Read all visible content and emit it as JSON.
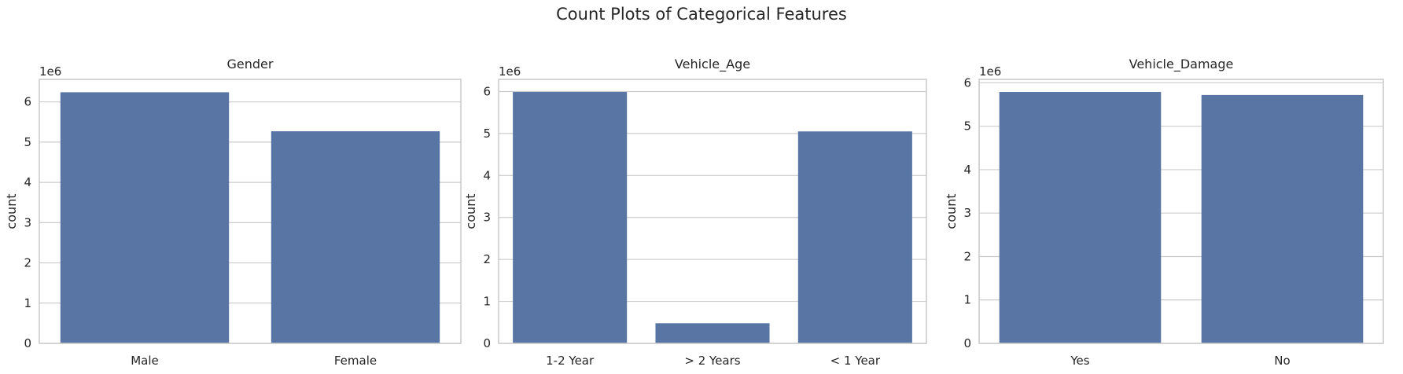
{
  "title": "Count Plots of Categorical Features",
  "colors": {
    "bar": "#5975a4",
    "grid": "#cccccc",
    "frame": "#cccccc",
    "text": "#262626"
  },
  "chart_data": [
    {
      "type": "bar",
      "title": "Gender",
      "categories": [
        "Male",
        "Female"
      ],
      "values": [
        6240000,
        5270000
      ],
      "ylabel": "count",
      "xlabel": "",
      "ylim": [
        0,
        6560000
      ],
      "yticks": [
        0,
        1,
        2,
        3,
        4,
        5,
        6
      ],
      "ytick_labels": [
        "0",
        "1",
        "2",
        "3",
        "4",
        "5",
        "6"
      ],
      "y_multiplier_label": "1e6",
      "grid": true
    },
    {
      "type": "bar",
      "title": "Vehicle_Age",
      "categories": [
        "1-2 Year",
        "> 2 Years",
        "< 1 Year"
      ],
      "values": [
        5990000,
        480000,
        5050000
      ],
      "ylabel": "count",
      "xlabel": "",
      "ylim": [
        0,
        6290000
      ],
      "yticks": [
        0,
        1,
        2,
        3,
        4,
        5,
        6
      ],
      "ytick_labels": [
        "0",
        "1",
        "2",
        "3",
        "4",
        "5",
        "6"
      ],
      "y_multiplier_label": "1e6",
      "grid": true
    },
    {
      "type": "bar",
      "title": "Vehicle_Damage",
      "categories": [
        "Yes",
        "No"
      ],
      "values": [
        5790000,
        5720000
      ],
      "ylabel": "count",
      "xlabel": "",
      "ylim": [
        0,
        6080000
      ],
      "yticks": [
        0,
        1,
        2,
        3,
        4,
        5,
        6
      ],
      "ytick_labels": [
        "0",
        "1",
        "2",
        "3",
        "4",
        "5",
        "6"
      ],
      "y_multiplier_label": "1e6",
      "grid": true
    }
  ]
}
